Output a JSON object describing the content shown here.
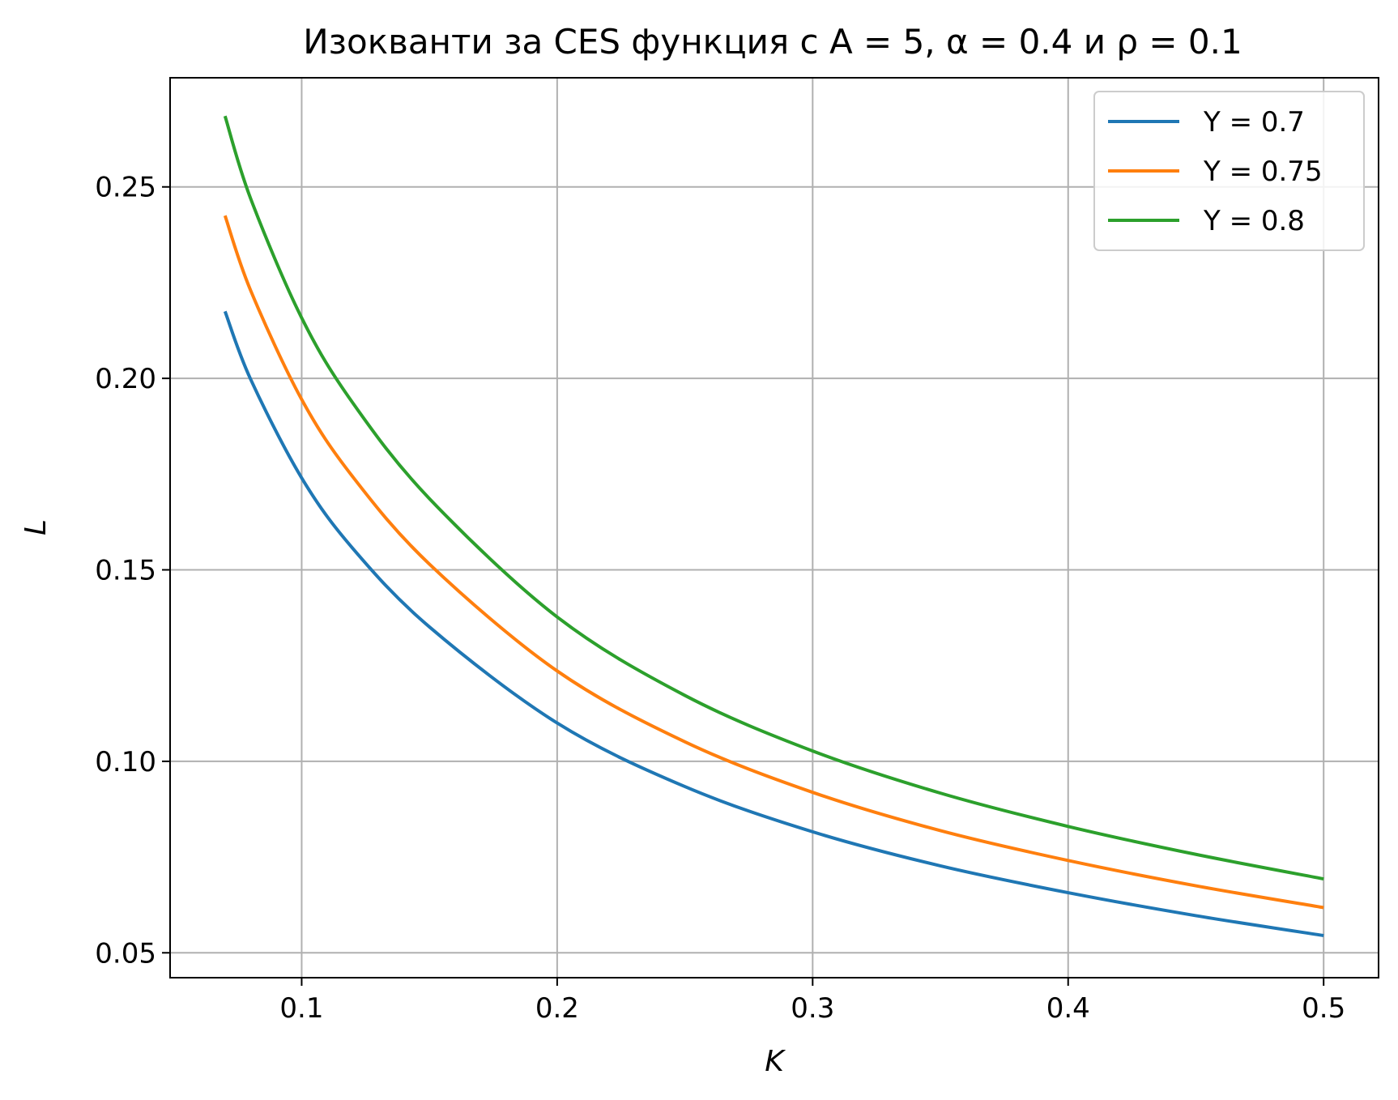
{
  "chart_data": {
    "type": "line",
    "title": "Изокванти за CES функция с A = 5, α = 0.4 и ρ = 0.1",
    "xlabel": "K",
    "ylabel": "L",
    "xlim": [
      0.0485,
      0.5215
    ],
    "ylim": [
      0.0435,
      0.2785
    ],
    "xticks": [
      0.1,
      0.2,
      0.3,
      0.4,
      0.5
    ],
    "xtick_labels": [
      "0.1",
      "0.2",
      "0.3",
      "0.4",
      "0.5"
    ],
    "yticks": [
      0.05,
      0.1,
      0.15,
      0.2,
      0.25
    ],
    "ytick_labels": [
      "0.05",
      "0.10",
      "0.15",
      "0.20",
      "0.25"
    ],
    "grid": true,
    "legend_position": "top-right",
    "x": [
      0.07,
      0.08,
      0.1,
      0.12,
      0.15,
      0.2,
      0.25,
      0.3,
      0.35,
      0.4,
      0.45,
      0.5
    ],
    "series": [
      {
        "name": "Y = 0.7",
        "color": "#1f77b4",
        "values": [
          0.2175,
          0.1998,
          0.174,
          0.1556,
          0.1351,
          0.11,
          0.0934,
          0.0816,
          0.0727,
          0.0657,
          0.0597,
          0.0545
        ]
      },
      {
        "name": "Y = 0.75",
        "color": "#ff7f0e",
        "values": [
          0.2425,
          0.223,
          0.1945,
          0.1743,
          0.1515,
          0.1236,
          0.1051,
          0.0919,
          0.0819,
          0.0741,
          0.0675,
          0.0618
        ]
      },
      {
        "name": "Y = 0.8",
        "color": "#2ca02c",
        "values": [
          0.2685,
          0.247,
          0.2158,
          0.1936,
          0.1686,
          0.1377,
          0.1172,
          0.1027,
          0.0917,
          0.083,
          0.0757,
          0.0693
        ]
      }
    ]
  }
}
